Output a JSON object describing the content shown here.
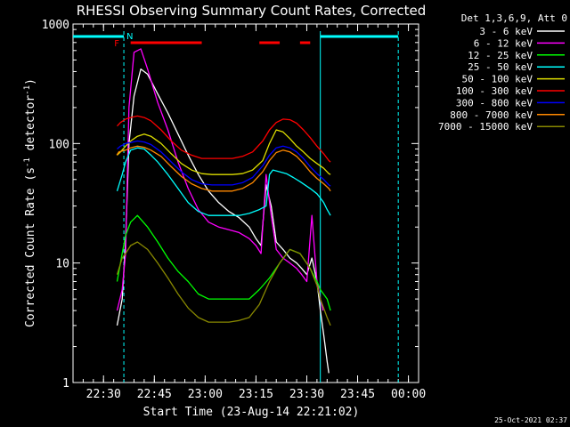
{
  "chart_data": {
    "type": "line",
    "title": "RHESSI Observing Summary Count Rates, Corrected",
    "xlabel": "Start Time (23-Aug-14 22:21:02)",
    "ylabel_main": "Corrected Count Rate (s",
    "ylabel_sup1": "-1",
    "ylabel_mid": " detector",
    "ylabel_sup2": "-1",
    "ylabel_end": ")",
    "y_scale": "log",
    "ylim": [
      1,
      1000
    ],
    "xlim_minutes": [
      0,
      102
    ],
    "x_tick_labels": [
      "22:30",
      "22:45",
      "23:00",
      "23:15",
      "23:30",
      "23:45",
      "00:00"
    ],
    "x_ticks_minutes": [
      9,
      24,
      39,
      54,
      69,
      84,
      99
    ],
    "y_tick_labels": [
      "1",
      "10",
      "100",
      "1000"
    ],
    "y_ticks": [
      1,
      10,
      100,
      1000
    ],
    "legend_header": "Det 1,3,6,9, Att 0",
    "legend_position": "top-right",
    "flags": {
      "flare_label": "F",
      "night_label": "N",
      "flare_color": "#ff0000",
      "night_color": "#00ffff",
      "night_lines_minutes": [
        15,
        73,
        96
      ],
      "night_segments_minutes": [
        [
          0,
          15
        ],
        [
          73,
          96
        ]
      ],
      "flare_segments_minutes": [
        [
          17,
          38
        ],
        [
          55,
          61
        ],
        [
          67,
          70
        ]
      ]
    },
    "series": [
      {
        "name": "3 - 6 keV",
        "color": "#ffffff",
        "x": [
          13,
          14.5,
          15.5,
          16.5,
          18,
          20,
          22,
          25,
          28,
          31,
          34,
          37,
          40,
          43,
          46,
          49,
          52,
          54,
          55.5,
          57,
          58.5,
          60,
          62,
          64,
          66,
          67.5,
          69,
          70.5,
          72,
          73,
          74,
          75,
          75.5
        ],
        "y": [
          3,
          5,
          15,
          100,
          250,
          420,
          380,
          260,
          180,
          120,
          80,
          55,
          40,
          32,
          27,
          24,
          20,
          16,
          14,
          45,
          30,
          15,
          13,
          11,
          10,
          9,
          8,
          11,
          7,
          4,
          2.5,
          1.5,
          1.2
        ]
      },
      {
        "name": "6 - 12 keV",
        "color": "#ff00ff",
        "x": [
          13,
          14.5,
          15.5,
          16.5,
          18,
          20,
          22,
          25,
          28,
          31,
          34,
          37,
          40,
          43,
          46,
          49,
          52,
          54,
          55.5,
          57,
          58.5,
          60,
          62,
          64,
          66,
          67.5,
          69,
          70.5,
          72,
          73,
          73.8
        ],
        "y": [
          4,
          6,
          12,
          200,
          580,
          620,
          420,
          220,
          130,
          70,
          42,
          28,
          22,
          20,
          19,
          18,
          16,
          14,
          12,
          55,
          25,
          13,
          11,
          10,
          9,
          8,
          7,
          25,
          7,
          5,
          4
        ]
      },
      {
        "name": "12 - 25 keV",
        "color": "#00ff00",
        "x": [
          13,
          14.5,
          15.5,
          17,
          19,
          22,
          25,
          28,
          31,
          34,
          37,
          40,
          43,
          46,
          49,
          52,
          55,
          58,
          61,
          64,
          67,
          70,
          72,
          73,
          75,
          76
        ],
        "y": [
          7,
          12,
          17,
          22,
          25,
          20,
          15,
          11,
          8.5,
          7,
          5.5,
          5,
          5,
          5,
          5,
          5,
          6,
          7.5,
          10,
          13,
          12,
          9,
          7,
          6,
          5,
          4
        ]
      },
      {
        "name": "25 - 50 keV",
        "color": "#00ffff",
        "x": [
          13,
          14.5,
          15.5,
          17,
          19,
          21,
          23,
          25,
          28,
          31,
          34,
          37,
          40,
          43,
          46,
          49,
          52,
          55,
          57,
          58,
          59,
          61,
          63,
          65,
          67,
          70,
          72,
          73,
          74,
          75,
          76
        ],
        "y": [
          40,
          55,
          70,
          88,
          92,
          90,
          80,
          70,
          55,
          42,
          32,
          27,
          25,
          25,
          25,
          25,
          26,
          28,
          30,
          55,
          60,
          58,
          56,
          52,
          48,
          42,
          38,
          35,
          32,
          28,
          25
        ]
      },
      {
        "name": "50 - 100 keV",
        "color": "#dddd00",
        "x": [
          13,
          14,
          15.5,
          17,
          19,
          21,
          23,
          26,
          29,
          32,
          35,
          38,
          41,
          44,
          47,
          50,
          53,
          56,
          58,
          60,
          62,
          64,
          66,
          68,
          70,
          72,
          74,
          75.5,
          76
        ],
        "y": [
          80,
          85,
          95,
          105,
          115,
          120,
          115,
          100,
          82,
          68,
          60,
          56,
          55,
          55,
          55,
          56,
          60,
          72,
          100,
          130,
          125,
          110,
          95,
          85,
          75,
          68,
          62,
          56,
          55
        ]
      },
      {
        "name": "100 - 300 keV",
        "color": "#ff0000",
        "x": [
          13,
          14,
          15.5,
          17,
          19,
          21,
          23,
          26,
          29,
          32,
          35,
          38,
          41,
          44,
          47,
          50,
          53,
          56,
          58,
          60,
          62,
          64,
          66,
          68,
          70,
          72,
          74,
          75.5,
          76
        ],
        "y": [
          140,
          150,
          160,
          165,
          170,
          165,
          155,
          130,
          105,
          88,
          80,
          75,
          75,
          75,
          75,
          78,
          85,
          105,
          130,
          150,
          160,
          158,
          148,
          130,
          112,
          95,
          82,
          72,
          70
        ]
      },
      {
        "name": "300 - 800 keV",
        "color": "#0000ff",
        "x": [
          13,
          14,
          15.5,
          17,
          19,
          21,
          23,
          26,
          29,
          32,
          35,
          38,
          41,
          44,
          47,
          50,
          53,
          56,
          58,
          60,
          62,
          64,
          66,
          68,
          70,
          72,
          74,
          75.5,
          76
        ],
        "y": [
          90,
          95,
          100,
          102,
          105,
          103,
          98,
          85,
          70,
          58,
          50,
          46,
          45,
          45,
          45,
          47,
          52,
          65,
          80,
          92,
          95,
          92,
          85,
          75,
          64,
          56,
          50,
          45,
          44
        ]
      },
      {
        "name": "800 - 7000 keV",
        "color": "#ff8800",
        "x": [
          12.9,
          13.5,
          15.5,
          17,
          19,
          21,
          23,
          26,
          29,
          32,
          35,
          38,
          41,
          44,
          47,
          50,
          53,
          56,
          58,
          60,
          62,
          64,
          66,
          68,
          70,
          72,
          74,
          75.5,
          76
        ],
        "y": [
          80,
          85,
          88,
          92,
          95,
          93,
          88,
          78,
          64,
          53,
          46,
          42,
          40,
          40,
          40,
          42,
          47,
          58,
          72,
          84,
          88,
          85,
          78,
          68,
          58,
          51,
          46,
          42,
          40
        ]
      },
      {
        "name": "7000 - 15000 keV",
        "color": "#888800",
        "x": [
          13,
          14.5,
          15.5,
          17,
          19,
          22,
          25,
          28,
          31,
          34,
          37,
          40,
          43,
          46,
          49,
          52,
          55,
          58,
          61,
          64,
          67,
          70,
          72,
          73,
          75,
          76
        ],
        "y": [
          8,
          11,
          12,
          14,
          15,
          13,
          10,
          7.5,
          5.5,
          4.2,
          3.5,
          3.2,
          3.2,
          3.2,
          3.3,
          3.5,
          4.5,
          7,
          10,
          13,
          12,
          9,
          6.5,
          5,
          3.5,
          3
        ]
      }
    ]
  },
  "timestamp": "25-Oct-2021 02:37"
}
